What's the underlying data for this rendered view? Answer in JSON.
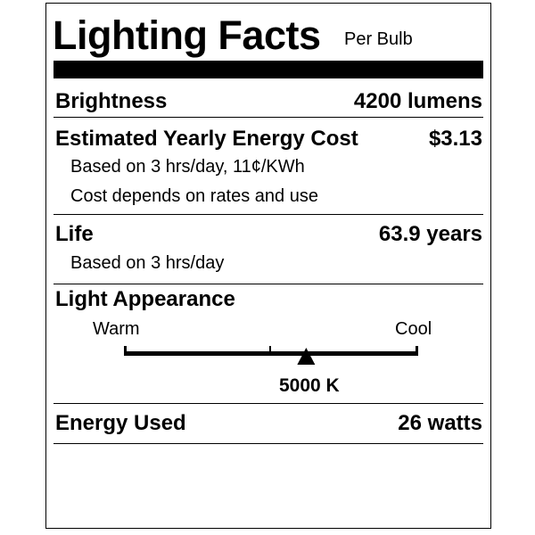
{
  "header": {
    "title": "Lighting Facts",
    "subtitle": "Per Bulb"
  },
  "brightness": {
    "label": "Brightness",
    "value": "4200 lumens"
  },
  "energy_cost": {
    "label": "Estimated Yearly Energy Cost",
    "value": "$3.13",
    "notes": [
      "Based on 3 hrs/day, 11¢/KWh",
      "Cost depends on rates and use"
    ]
  },
  "life": {
    "label": "Life",
    "value": "63.9 years",
    "note": "Based on 3 hrs/day"
  },
  "light_appearance": {
    "label": "Light Appearance",
    "warm_label": "Warm",
    "cool_label": "Cool",
    "value": "5000 K",
    "scale_position": 0.62
  },
  "energy_used": {
    "label": "Energy Used",
    "value": "26 watts"
  }
}
